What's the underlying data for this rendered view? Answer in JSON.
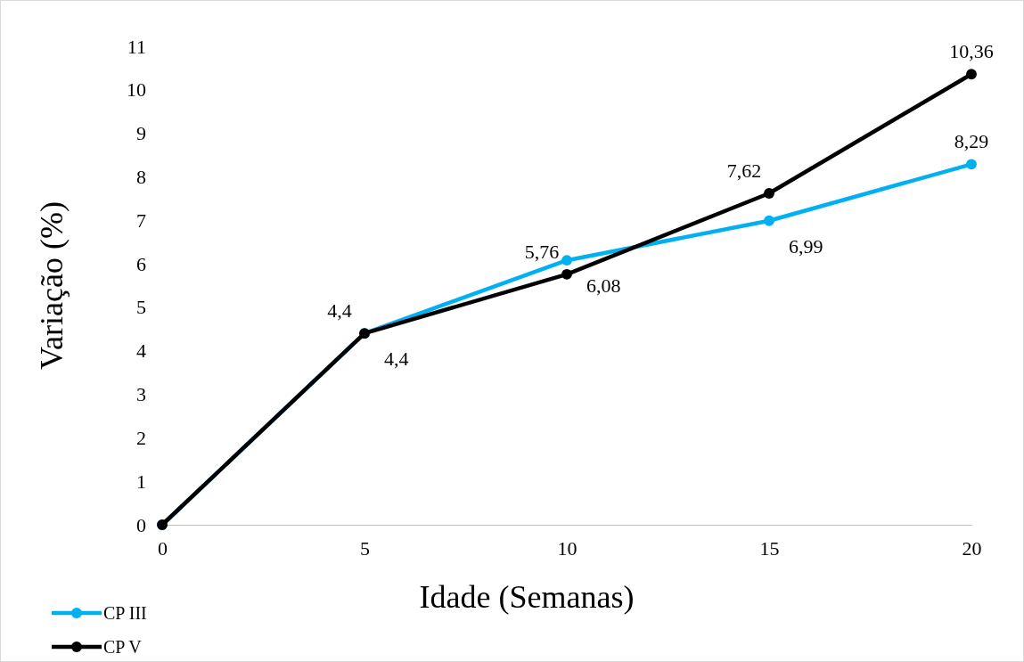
{
  "chart_data": {
    "type": "line",
    "xlabel": "Idade (Semanas)",
    "ylabel": "Variação (%)",
    "x": [
      0,
      5,
      10,
      15,
      20
    ],
    "xlim": [
      0,
      20
    ],
    "xticks": [
      0,
      5,
      10,
      15,
      20
    ],
    "ylim": [
      0,
      11
    ],
    "yticks": [
      0,
      1,
      2,
      3,
      4,
      5,
      6,
      7,
      8,
      9,
      10,
      11
    ],
    "grid": false,
    "legend": "bottom left",
    "marker": "circle",
    "line_style": "solid",
    "series": [
      {
        "name": "CP III",
        "color": "#00b0f0",
        "values": [
          0,
          4.4,
          6.08,
          6.99,
          8.29
        ],
        "value_labels": [
          null,
          "4,4",
          "6,08",
          "6,99",
          "8,29"
        ]
      },
      {
        "name": "CP V",
        "color": "#000000",
        "values": [
          0,
          4.4,
          5.76,
          7.62,
          10.36
        ],
        "value_labels": [
          null,
          "4,4",
          "5,76",
          "7,62",
          "10,36"
        ]
      }
    ]
  }
}
